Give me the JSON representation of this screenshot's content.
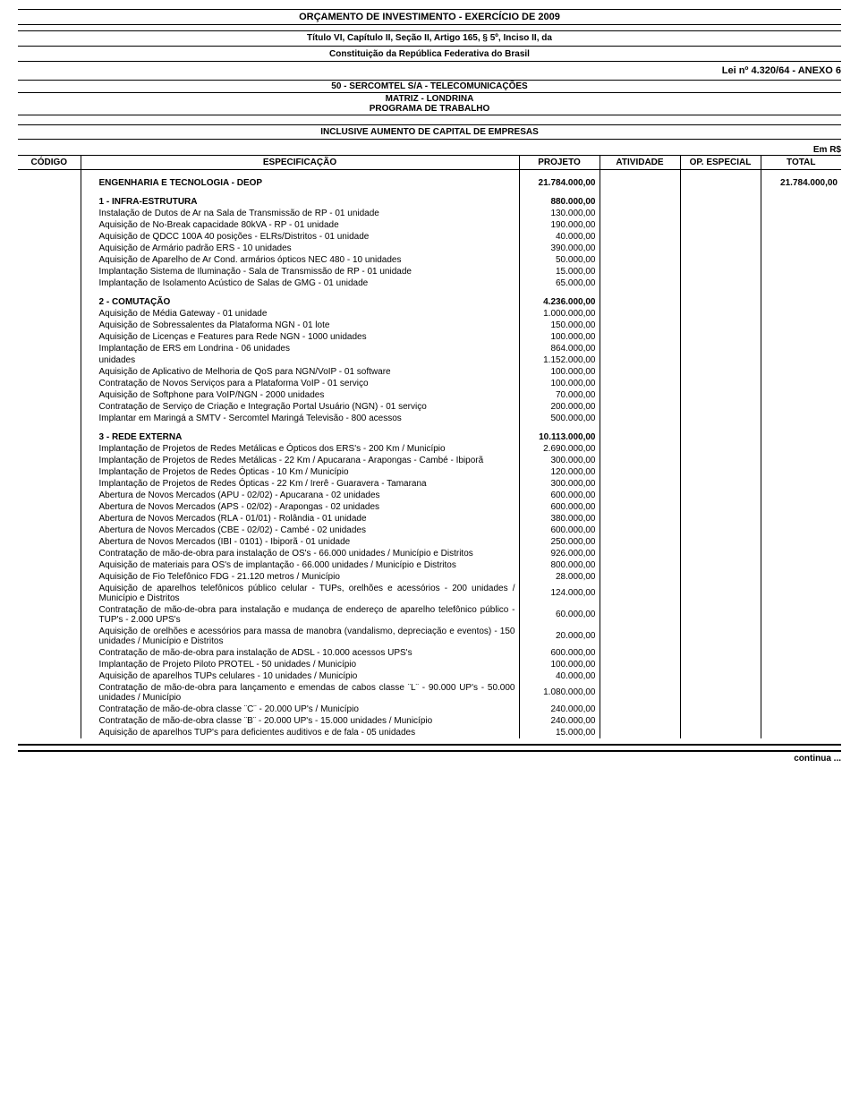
{
  "header": {
    "title": "ORÇAMENTO DE INVESTIMENTO - EXERCÍCIO DE 2009",
    "subtitle1": "Título VI, Capítulo II, Seção II, Artigo 165, § 5º, Inciso II, da",
    "subtitle2": "Constituição da República Federativa do Brasil",
    "law": "Lei nº 4.320/64 - ANEXO 6",
    "company1": "50 - SERCOMTEL S/A - TELECOMUNICAÇÕES",
    "company2": "MATRIZ - LONDRINA",
    "company3": "PROGRAMA DE TRABALHO",
    "inclusive": "INCLUSIVE AUMENTO DE CAPITAL DE EMPRESAS",
    "currency": "Em R$"
  },
  "columns": {
    "codigo": "CÓDIGO",
    "espec": "ESPECIFICAÇÃO",
    "projeto": "PROJETO",
    "atividade": "ATIVIDADE",
    "op": "OP. ESPECIAL",
    "total": "TOTAL"
  },
  "rows": [
    {
      "type": "bold",
      "spec": "ENGENHARIA E TECNOLOGIA - DEOP",
      "proj": "21.784.000,00",
      "total": "21.784.000,00"
    },
    {
      "type": "gap"
    },
    {
      "type": "bold",
      "spec": "1 - INFRA-ESTRUTURA",
      "proj": "880.000,00"
    },
    {
      "spec": "Instalação de Dutos de Ar na Sala de Transmissão de RP - 01 unidade",
      "proj": "130.000,00"
    },
    {
      "spec": "Aquisição de No-Break capacidade 80kVA - RP - 01 unidade",
      "proj": "190.000,00"
    },
    {
      "spec": "Aquisição de QDCC 100A 40 posições - ELRs/Distritos - 01 unidade",
      "proj": "40.000,00"
    },
    {
      "spec": "Aquisição de Armário padrão ERS - 10 unidades",
      "proj": "390.000,00"
    },
    {
      "spec": "Aquisição de Aparelho de Ar Cond. armários ópticos NEC 480 - 10 unidades",
      "proj": "50.000,00"
    },
    {
      "spec": "Implantação Sistema de Iluminação - Sala de Transmissão de RP - 01 unidade",
      "proj": "15.000,00"
    },
    {
      "spec": "Implantação de Isolamento Acústico de Salas de GMG - 01 unidade",
      "proj": "65.000,00"
    },
    {
      "type": "gap"
    },
    {
      "type": "bold",
      "spec": "2 - COMUTAÇÃO",
      "proj": "4.236.000,00"
    },
    {
      "spec": "Aquisição de Média Gateway - 01 unidade",
      "proj": "1.000.000,00"
    },
    {
      "spec": "Aquisição de Sobressalentes da Plataforma NGN - 01 lote",
      "proj": "150.000,00"
    },
    {
      "spec": "Aquisição de Licenças e Features para Rede NGN - 1000 unidades",
      "proj": "100.000,00"
    },
    {
      "spec": "Implantação de ERS em Londrina - 06 unidades",
      "proj": "864.000,00"
    },
    {
      "spec": "unidades",
      "proj": "1.152.000,00"
    },
    {
      "spec": "Aquisição de Aplicativo de Melhoria de QoS para NGN/VoIP - 01 software",
      "proj": "100.000,00"
    },
    {
      "spec": "Contratação de Novos Serviços para a Plataforma VoIP - 01 serviço",
      "proj": "100.000,00"
    },
    {
      "spec": "Aquisição de Softphone para VoIP/NGN - 2000 unidades",
      "proj": "70.000,00"
    },
    {
      "spec": "Contratação de Serviço de Criação e Integração Portal Usuário (NGN) - 01 serviço",
      "proj": "200.000,00"
    },
    {
      "spec": "Implantar em Maringá a SMTV - Sercomtel Maringá Televisão - 800 acessos",
      "proj": "500.000,00"
    },
    {
      "type": "gap"
    },
    {
      "type": "bold",
      "spec": "3 - REDE EXTERNA",
      "proj": "10.113.000,00"
    },
    {
      "spec": "Implantação de Projetos de Redes Metálicas e Ópticos dos ERS's - 200 Km / Município",
      "proj": "2.690.000,00"
    },
    {
      "spec": "Implantação de Projetos de Redes Metálicas - 22 Km / Apucarana - Arapongas - Cambé - Ibiporã",
      "proj": "300.000,00"
    },
    {
      "spec": "Implantação de Projetos de Redes Ópticas - 10 Km / Município",
      "proj": "120.000,00"
    },
    {
      "spec": "Implantação de Projetos de Redes Ópticas - 22 Km / Irerê - Guaravera - Tamarana",
      "proj": "300.000,00"
    },
    {
      "spec": "Abertura de Novos Mercados (APU - 02/02) - Apucarana - 02 unidades",
      "proj": "600.000,00"
    },
    {
      "spec": "Abertura de Novos Mercados (APS - 02/02) - Arapongas - 02 unidades",
      "proj": "600.000,00"
    },
    {
      "spec": "Abertura de Novos Mercados (RLA - 01/01) - Rolândia - 01 unidade",
      "proj": "380.000,00"
    },
    {
      "spec": "Abertura de Novos Mercados (CBE - 02/02) - Cambé - 02 unidades",
      "proj": "600.000,00"
    },
    {
      "spec": "Abertura de Novos Mercados (IBI - 0101) - Ibiporã - 01 unidade",
      "proj": "250.000,00"
    },
    {
      "spec": "Contratação de mão-de-obra para instalação de OS's - 66.000 unidades / Município e Distritos",
      "proj": "926.000,00"
    },
    {
      "spec": "Aquisição de materiais para OS's de implantação - 66.000 unidades / Município e Distritos",
      "proj": "800.000,00"
    },
    {
      "spec": "Aquisição de Fio Telefônico FDG - 21.120 metros / Município",
      "proj": "28.000,00"
    },
    {
      "spec": "Aquisição de aparelhos telefônicos público celular - TUPs, orelhões e acessórios - 200 unidades / Município e Distritos",
      "proj": "124.000,00"
    },
    {
      "spec": "Contratação de mão-de-obra para instalação e mudança de endereço de aparelho telefônico público - TUP's - 2.000 UPS's",
      "proj": "60.000,00"
    },
    {
      "spec": "Aquisição de orelhões e acessórios para massa de manobra (vandalismo, depreciação e eventos) - 150 unidades / Município e Distritos",
      "proj": "20.000,00"
    },
    {
      "spec": "Contratação de mão-de-obra para instalação de ADSL - 10.000 acessos UPS's",
      "proj": "600.000,00"
    },
    {
      "spec": "Implantação de Projeto Piloto PROTEL - 50 unidades / Município",
      "proj": "100.000,00"
    },
    {
      "spec": "Aquisição de aparelhos TUPs celulares - 10 unidades / Município",
      "proj": "40.000,00"
    },
    {
      "spec": "Contratação de mão-de-obra para lançamento e emendas de cabos classe ¨L¨ - 90.000 UP's - 50.000 unidades / Município",
      "proj": "1.080.000,00"
    },
    {
      "spec": "Contratação de mão-de-obra classe ¨C¨ - 20.000 UP's / Município",
      "proj": "240.000,00"
    },
    {
      "spec": "Contratação de mão-de-obra classe ¨B¨ - 20.000 UP's - 15.000 unidades / Município",
      "proj": "240.000,00"
    },
    {
      "spec": "Aquisição de aparelhos TUP's para deficientes auditivos e de fala - 05 unidades",
      "proj": "15.000,00"
    }
  ],
  "footer": {
    "continue": "continua ..."
  }
}
